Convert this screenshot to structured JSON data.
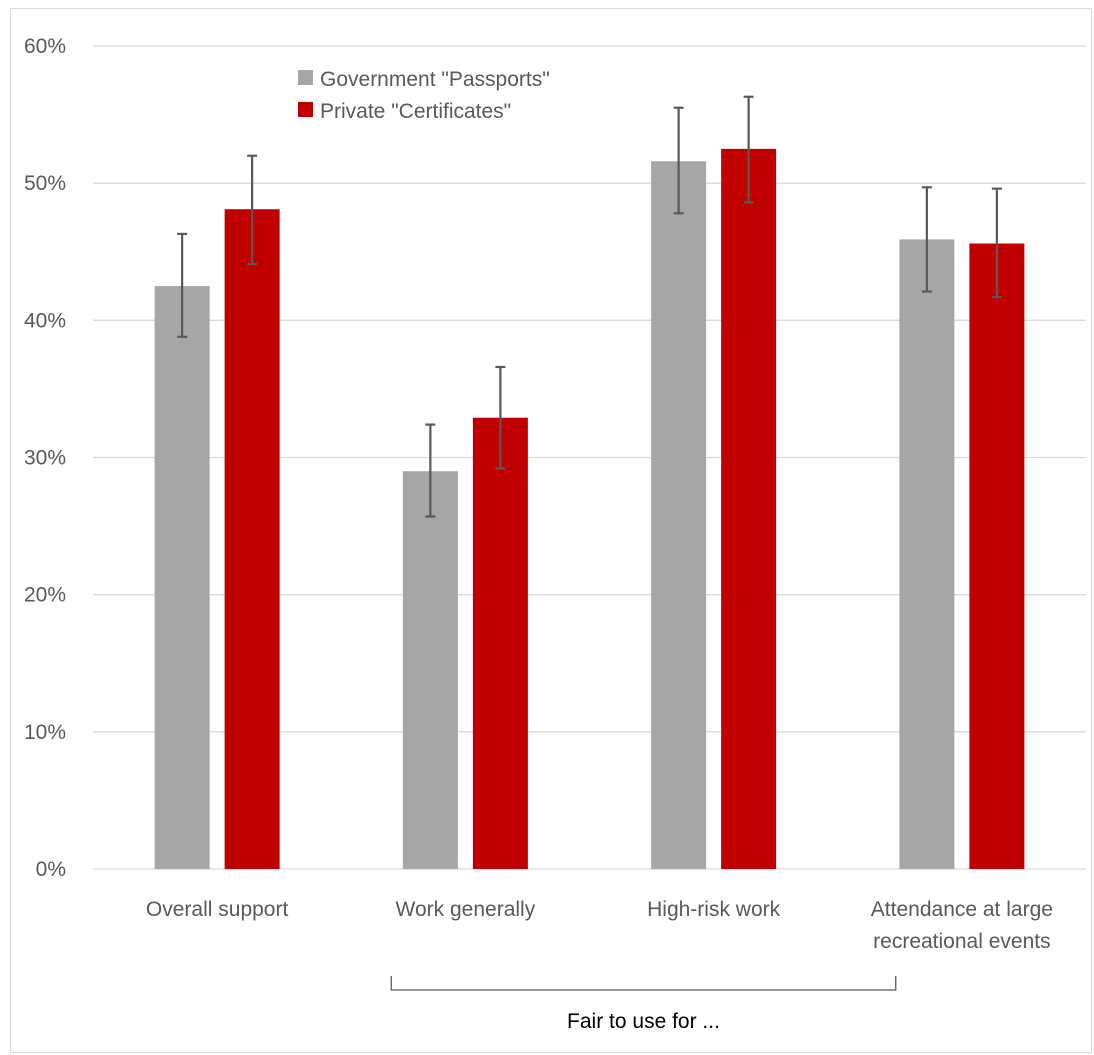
{
  "chart_data": {
    "type": "bar",
    "categories": [
      [
        "Overall support"
      ],
      [
        "Work generally"
      ],
      [
        "High-risk work"
      ],
      [
        "Attendance at large",
        "recreational events"
      ]
    ],
    "series": [
      {
        "name": "Government \"Passports\"",
        "color": "#a6a6a6",
        "values": [
          42.5,
          29.0,
          51.6,
          45.9
        ],
        "error_low": [
          38.8,
          25.7,
          47.8,
          42.1
        ],
        "error_high": [
          46.3,
          32.4,
          55.5,
          49.7
        ]
      },
      {
        "name": "Private \"Certificates\"",
        "color": "#c00000",
        "values": [
          48.1,
          32.9,
          52.5,
          45.6
        ],
        "error_low": [
          44.1,
          29.2,
          48.6,
          41.7
        ],
        "error_high": [
          52.0,
          36.6,
          56.3,
          49.6
        ]
      }
    ],
    "y_ticks": [
      "0%",
      "10%",
      "20%",
      "30%",
      "40%",
      "50%",
      "60%"
    ],
    "ylim": [
      0,
      60
    ],
    "grid": true,
    "legend_position": "top-left",
    "bracket_label": "Fair to use for ...",
    "bracket_span": [
      "Work generally",
      "Attendance at large recreational events"
    ],
    "error_bar_color": "#595959",
    "gridline_color": "#d9d9d9"
  }
}
